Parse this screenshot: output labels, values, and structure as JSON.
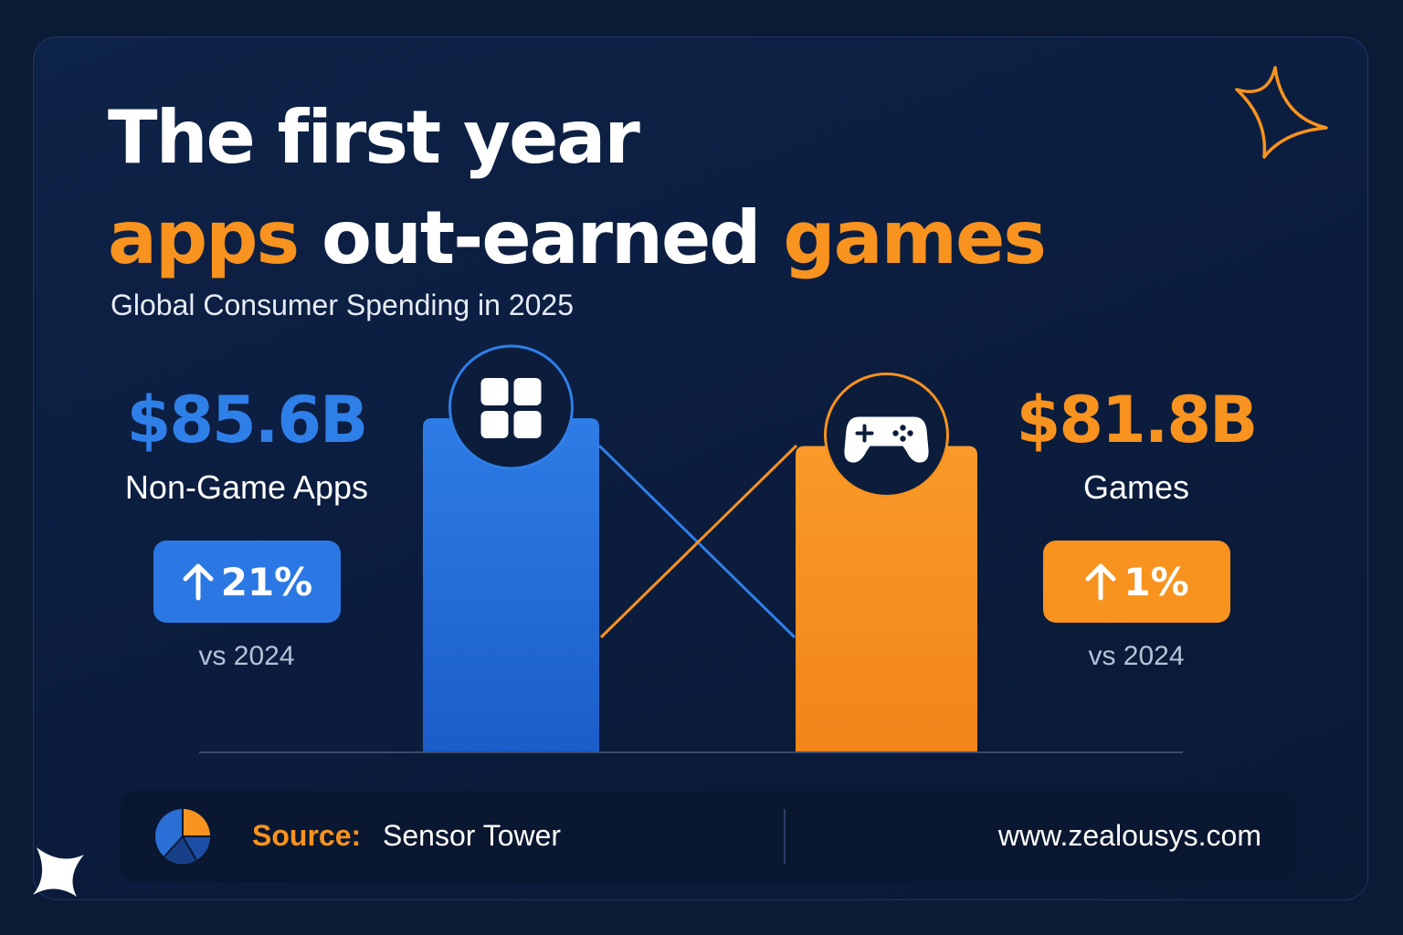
{
  "title": {
    "line1": "The first year",
    "line2_a": "apps",
    "line2_b": " out-earned ",
    "line2_c": "games"
  },
  "subtitle": "Global Consumer Spending in 2025",
  "chart_data": {
    "type": "bar",
    "title": "The first year apps out-earned games",
    "subtitle": "Global Consumer Spending in 2025",
    "categories": [
      "Non-Game Apps",
      "Games"
    ],
    "values": [
      85.6,
      81.8
    ],
    "unit": "B USD",
    "value_labels": [
      "$85.6B",
      "$81.8B"
    ],
    "growth": [
      "21%",
      "1%"
    ],
    "growth_note": "vs 2024",
    "colors": [
      "#2f7fe8",
      "#f7931e"
    ],
    "icons": [
      "app-grid-icon",
      "gamepad-icon"
    ]
  },
  "apps": {
    "amount": "$85.6B",
    "label": "Non-Game Apps",
    "growth": "21%",
    "vs": "vs 2024"
  },
  "games": {
    "amount": "$81.8B",
    "label": "Games",
    "growth": "1%",
    "vs": "vs 2024"
  },
  "footer": {
    "source_label": "Source:",
    "source_value": "Sensor Tower",
    "website": "www.zealousys.com",
    "icon": "pie-chart-icon"
  },
  "colors": {
    "background": "#0b1a35",
    "apps": "#2f7fe8",
    "games": "#f7931e",
    "text": "#ffffff"
  }
}
